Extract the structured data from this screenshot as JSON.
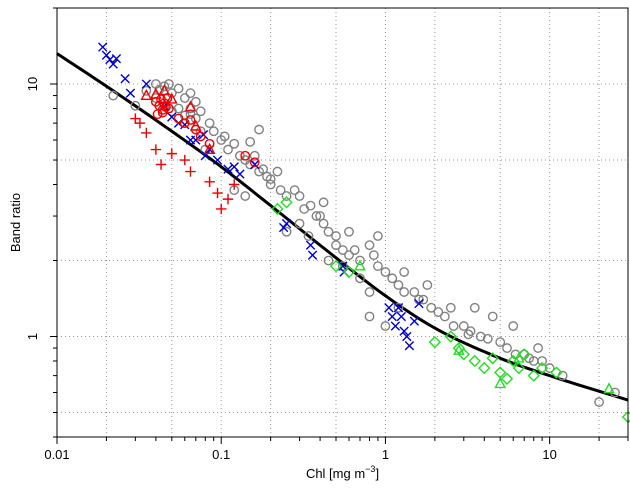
{
  "chart_data": {
    "type": "scatter",
    "xlabel": "Chl [mg  m",
    "xlabel_sup": "−3",
    "xlabel_close": "]",
    "ylabel": "Band ratio",
    "x_scale": "log",
    "y_scale": "log",
    "xlim": [
      0.01,
      30
    ],
    "ylim": [
      0.4,
      20
    ],
    "grid": true,
    "grid_style": "dotted",
    "x_ticks": [
      {
        "value": 0.01,
        "label": "0.01"
      },
      {
        "value": 0.1,
        "label": "0.1"
      },
      {
        "value": 1,
        "label": "1"
      },
      {
        "value": 10,
        "label": "10"
      }
    ],
    "y_ticks": [
      {
        "value": 1,
        "label": "1"
      },
      {
        "value": 10,
        "label": "10"
      }
    ],
    "series": [
      {
        "marker": "circle",
        "color": "#808080",
        "points": [
          [
            0.04,
            10
          ],
          [
            0.042,
            9.5
          ],
          [
            0.045,
            9.8
          ],
          [
            0.048,
            10
          ],
          [
            0.05,
            9.2
          ],
          [
            0.055,
            9.6
          ],
          [
            0.06,
            8.8
          ],
          [
            0.065,
            9.2
          ],
          [
            0.07,
            8.5
          ],
          [
            0.04,
            8.8
          ],
          [
            0.045,
            8.2
          ],
          [
            0.05,
            7.8
          ],
          [
            0.055,
            8
          ],
          [
            0.06,
            7.5
          ],
          [
            0.065,
            7.6
          ],
          [
            0.07,
            7.3
          ],
          [
            0.075,
            7.8
          ],
          [
            0.085,
            7
          ],
          [
            0.09,
            6.5
          ],
          [
            0.1,
            6
          ],
          [
            0.105,
            6.2
          ],
          [
            0.11,
            5.5
          ],
          [
            0.12,
            5.8
          ],
          [
            0.13,
            5.2
          ],
          [
            0.14,
            5
          ],
          [
            0.15,
            4.8
          ],
          [
            0.16,
            5.2
          ],
          [
            0.17,
            4.5
          ],
          [
            0.18,
            4.6
          ],
          [
            0.19,
            4.3
          ],
          [
            0.2,
            4
          ],
          [
            0.23,
            3.8
          ],
          [
            0.25,
            3.6
          ],
          [
            0.28,
            3.8
          ],
          [
            0.3,
            3.6
          ],
          [
            0.32,
            3.2
          ],
          [
            0.35,
            3.3
          ],
          [
            0.38,
            3
          ],
          [
            0.42,
            2.8
          ],
          [
            0.45,
            2.6
          ],
          [
            0.5,
            2.3
          ],
          [
            0.55,
            2.2
          ],
          [
            0.6,
            2.1
          ],
          [
            0.65,
            2.2
          ],
          [
            0.7,
            2
          ],
          [
            0.8,
            2.3
          ],
          [
            0.85,
            2.1
          ],
          [
            0.9,
            1.9
          ],
          [
            1,
            1.8
          ],
          [
            1.1,
            1.7
          ],
          [
            1.2,
            1.6
          ],
          [
            1.3,
            1.5
          ],
          [
            1.5,
            1.5
          ],
          [
            1.7,
            1.4
          ],
          [
            1.9,
            1.3
          ],
          [
            2.1,
            1.25
          ],
          [
            2.3,
            1.2
          ],
          [
            2.6,
            1.1
          ],
          [
            3,
            1.1
          ],
          [
            3.3,
            1.05
          ],
          [
            3.8,
            1
          ],
          [
            4.2,
            0.98
          ],
          [
            5,
            0.95
          ],
          [
            5.5,
            0.9
          ],
          [
            6.2,
            0.85
          ],
          [
            7,
            0.85
          ],
          [
            8,
            0.8
          ],
          [
            9,
            0.8
          ],
          [
            10,
            0.75
          ],
          [
            12,
            0.7
          ],
          [
            20,
            0.55
          ],
          [
            25,
            0.6
          ],
          [
            0.3,
            2.8
          ],
          [
            0.34,
            2.5
          ],
          [
            0.6,
            2.6
          ],
          [
            0.8,
            1.5
          ],
          [
            1,
            1.1
          ],
          [
            1.8,
            1.6
          ],
          [
            2.5,
            1.3
          ],
          [
            3.5,
            1.3
          ],
          [
            0.022,
            9
          ],
          [
            0.03,
            8.2
          ],
          [
            0.035,
            9.4
          ],
          [
            0.065,
            8
          ],
          [
            0.08,
            5.5
          ],
          [
            0.12,
            3.8
          ],
          [
            0.17,
            6.6
          ],
          [
            0.22,
            4.5
          ],
          [
            0.45,
            2
          ],
          [
            0.9,
            2.5
          ],
          [
            4.5,
            1.2
          ],
          [
            6,
            1.1
          ],
          [
            8.5,
            0.9
          ],
          [
            1.3,
            1.8
          ],
          [
            0.7,
            1.7
          ],
          [
            0.2,
            4.2
          ],
          [
            0.075,
            6.5
          ],
          [
            0.14,
            3.6
          ],
          [
            0.4,
            3
          ],
          [
            0.8,
            1.2
          ],
          [
            0.55,
            1.9
          ],
          [
            1.2,
            1.3
          ],
          [
            1.6,
            1.4
          ],
          [
            3.2,
            1.02
          ],
          [
            7.5,
            0.82
          ],
          [
            0.42,
            3.4
          ],
          [
            0.5,
            2.5
          ],
          [
            0.25,
            2.6
          ],
          [
            0.15,
            5.9
          ]
        ]
      },
      {
        "marker": "x",
        "color": "#0000cc",
        "points": [
          [
            0.019,
            14
          ],
          [
            0.02,
            13
          ],
          [
            0.021,
            12.5
          ],
          [
            0.022,
            12
          ],
          [
            0.023,
            12.6
          ],
          [
            0.026,
            10.5
          ],
          [
            0.028,
            9.2
          ],
          [
            0.035,
            10
          ],
          [
            0.045,
            8.2
          ],
          [
            0.05,
            7.4
          ],
          [
            0.055,
            7
          ],
          [
            0.06,
            6.9
          ],
          [
            0.065,
            6
          ],
          [
            0.07,
            6
          ],
          [
            0.078,
            6.3
          ],
          [
            0.08,
            5.2
          ],
          [
            0.085,
            5.5
          ],
          [
            0.095,
            5
          ],
          [
            0.11,
            4.6
          ],
          [
            0.12,
            4.7
          ],
          [
            0.13,
            4.4
          ],
          [
            0.16,
            4.8
          ],
          [
            0.24,
            2.7
          ],
          [
            0.25,
            2.8
          ],
          [
            0.35,
            2.3
          ],
          [
            0.36,
            2.1
          ],
          [
            0.55,
            1.9
          ],
          [
            0.56,
            1.8
          ],
          [
            1.05,
            1.3
          ],
          [
            1.1,
            1.2
          ],
          [
            1.15,
            1.1
          ],
          [
            1.2,
            1.3
          ],
          [
            1.25,
            1.2
          ],
          [
            1.3,
            1.05
          ],
          [
            1.35,
            1
          ],
          [
            1.4,
            0.92
          ],
          [
            1.5,
            1.15
          ],
          [
            1.6,
            1.35
          ]
        ]
      },
      {
        "marker": "plus",
        "color": "#ee0000",
        "points": [
          [
            0.03,
            7.3
          ],
          [
            0.032,
            7
          ],
          [
            0.035,
            6.4
          ],
          [
            0.04,
            5.5
          ],
          [
            0.043,
            4.8
          ],
          [
            0.05,
            5.3
          ],
          [
            0.06,
            5
          ],
          [
            0.065,
            4.5
          ],
          [
            0.085,
            4.1
          ],
          [
            0.095,
            3.7
          ],
          [
            0.1,
            3.2
          ],
          [
            0.11,
            3.5
          ],
          [
            0.12,
            4
          ]
        ]
      },
      {
        "marker": "circle",
        "color": "#ee0000",
        "points": [
          [
            0.04,
            8.5
          ],
          [
            0.042,
            8.2
          ],
          [
            0.043,
            8.7
          ],
          [
            0.044,
            7.9
          ],
          [
            0.045,
            8.4
          ],
          [
            0.046,
            8.1
          ],
          [
            0.047,
            8.8
          ],
          [
            0.048,
            8
          ],
          [
            0.041,
            7.6
          ],
          [
            0.044,
            7.7
          ],
          [
            0.055,
            7.3
          ],
          [
            0.06,
            7
          ],
          [
            0.065,
            7.2
          ],
          [
            0.07,
            6.6
          ],
          [
            0.075,
            6.2
          ],
          [
            0.085,
            5.8
          ],
          [
            0.14,
            5.2
          ],
          [
            0.16,
            4.9
          ]
        ]
      },
      {
        "marker": "triangle",
        "color": "#ee0000",
        "points": [
          [
            0.035,
            9
          ],
          [
            0.045,
            9.4
          ],
          [
            0.05,
            8.7
          ],
          [
            0.065,
            8.1
          ],
          [
            0.07,
            6.8
          ],
          [
            0.085,
            5.5
          ],
          [
            0.04,
            9.1
          ]
        ]
      },
      {
        "marker": "diamond",
        "color": "#22dd22",
        "points": [
          [
            0.22,
            3.2
          ],
          [
            0.25,
            3.4
          ],
          [
            0.5,
            1.9
          ],
          [
            0.6,
            1.8
          ],
          [
            2,
            0.95
          ],
          [
            2.5,
            1
          ],
          [
            2.8,
            0.9
          ],
          [
            3,
            0.85
          ],
          [
            3.5,
            0.8
          ],
          [
            4,
            0.75
          ],
          [
            4.5,
            0.82
          ],
          [
            5,
            0.72
          ],
          [
            5.5,
            0.68
          ],
          [
            6,
            0.8
          ],
          [
            6.5,
            0.75
          ],
          [
            7,
            0.85
          ],
          [
            8,
            0.7
          ],
          [
            9,
            0.75
          ],
          [
            11,
            0.72
          ],
          [
            30,
            0.48
          ]
        ]
      },
      {
        "marker": "triangle",
        "color": "#22dd22",
        "points": [
          [
            0.7,
            1.9
          ],
          [
            2.8,
            0.88
          ],
          [
            5,
            0.65
          ],
          [
            6.5,
            0.82
          ],
          [
            23,
            0.62
          ]
        ]
      }
    ],
    "fit_curve": {
      "color": "#000000",
      "points": [
        [
          0.01,
          13.2
        ],
        [
          0.02,
          9.8
        ],
        [
          0.05,
          6.5
        ],
        [
          0.1,
          4.7
        ],
        [
          0.2,
          3.3
        ],
        [
          0.5,
          2.05
        ],
        [
          1,
          1.45
        ],
        [
          2,
          1.08
        ],
        [
          5,
          0.82
        ],
        [
          10,
          0.7
        ],
        [
          30,
          0.56
        ]
      ]
    }
  }
}
